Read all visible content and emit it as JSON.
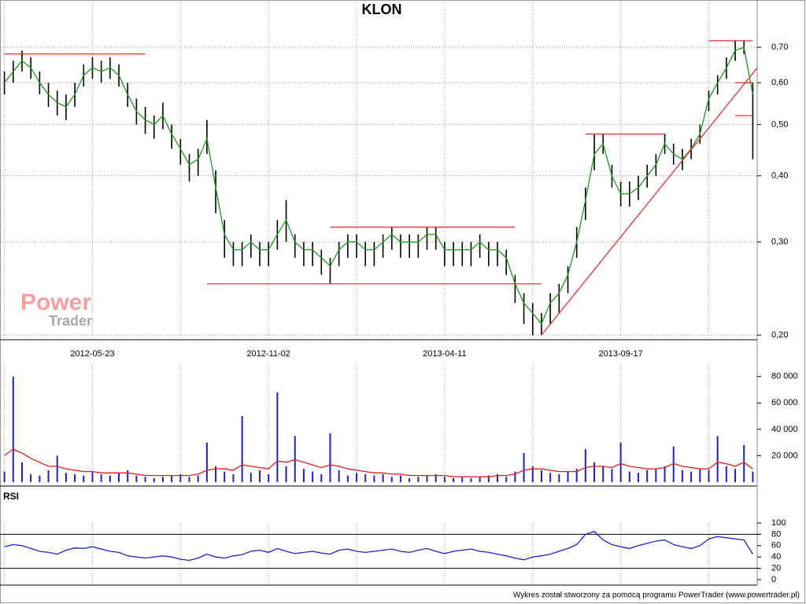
{
  "footer": "Wykres został stworzony za pomocą programu PowerTrader (www.powertrader.pl)",
  "chart_data": [
    {
      "type": "range",
      "title": "KLON",
      "log": true,
      "grid": true,
      "bar_color": "#000000",
      "categories": [
        null,
        null,
        null,
        null,
        null,
        null,
        null,
        null,
        null,
        null,
        "2012-05-23",
        null,
        null,
        null,
        null,
        null,
        null,
        null,
        null,
        null,
        null,
        null,
        null,
        null,
        null,
        null,
        null,
        null,
        null,
        null,
        "2012-11-02",
        null,
        null,
        null,
        null,
        null,
        null,
        null,
        null,
        null,
        null,
        null,
        null,
        null,
        null,
        null,
        null,
        null,
        null,
        null,
        "2013-04-11",
        null,
        null,
        null,
        null,
        null,
        null,
        null,
        null,
        null,
        null,
        null,
        null,
        null,
        null,
        null,
        null,
        null,
        null,
        null,
        "2013-09-17",
        null,
        null,
        null,
        null,
        null,
        null,
        null,
        null,
        null,
        null,
        null,
        null,
        null,
        null,
        null
      ],
      "high": [
        0.63,
        0.66,
        0.69,
        0.67,
        0.63,
        0.6,
        0.58,
        0.57,
        0.6,
        0.65,
        0.67,
        0.66,
        0.67,
        0.65,
        0.6,
        0.56,
        0.54,
        0.52,
        0.55,
        0.5,
        0.47,
        0.44,
        0.45,
        0.51,
        0.41,
        0.33,
        0.3,
        0.3,
        0.31,
        0.3,
        0.3,
        0.33,
        0.36,
        0.31,
        0.3,
        0.3,
        0.29,
        0.28,
        0.3,
        0.31,
        0.31,
        0.3,
        0.3,
        0.31,
        0.32,
        0.31,
        0.31,
        0.31,
        0.32,
        0.32,
        0.3,
        0.3,
        0.3,
        0.3,
        0.31,
        0.3,
        0.3,
        0.29,
        0.26,
        0.24,
        0.23,
        0.22,
        0.24,
        0.25,
        0.27,
        0.32,
        0.38,
        0.48,
        0.48,
        0.42,
        0.39,
        0.39,
        0.4,
        0.42,
        0.44,
        0.48,
        0.46,
        0.45,
        0.47,
        0.5,
        0.58,
        0.62,
        0.67,
        0.72,
        0.72,
        0.6
      ],
      "low": [
        0.57,
        0.6,
        0.63,
        0.61,
        0.57,
        0.54,
        0.52,
        0.51,
        0.54,
        0.59,
        0.61,
        0.6,
        0.61,
        0.59,
        0.54,
        0.5,
        0.48,
        0.47,
        0.49,
        0.45,
        0.42,
        0.39,
        0.4,
        0.44,
        0.34,
        0.28,
        0.27,
        0.27,
        0.28,
        0.27,
        0.27,
        0.29,
        0.3,
        0.28,
        0.27,
        0.27,
        0.26,
        0.25,
        0.27,
        0.28,
        0.28,
        0.27,
        0.27,
        0.28,
        0.29,
        0.28,
        0.28,
        0.28,
        0.29,
        0.29,
        0.27,
        0.27,
        0.27,
        0.27,
        0.28,
        0.27,
        0.27,
        0.26,
        0.23,
        0.21,
        0.2,
        0.2,
        0.21,
        0.22,
        0.24,
        0.28,
        0.33,
        0.41,
        0.44,
        0.38,
        0.35,
        0.35,
        0.36,
        0.38,
        0.4,
        0.44,
        0.42,
        0.41,
        0.43,
        0.46,
        0.53,
        0.57,
        0.61,
        0.66,
        0.68,
        0.43
      ],
      "ma": {
        "color": "#1a9a1a",
        "values": [
          0.6,
          0.63,
          0.66,
          0.64,
          0.6,
          0.57,
          0.55,
          0.54,
          0.57,
          0.62,
          0.64,
          0.63,
          0.64,
          0.62,
          0.57,
          0.53,
          0.51,
          0.5,
          0.52,
          0.48,
          0.45,
          0.42,
          0.43,
          0.47,
          0.38,
          0.31,
          0.29,
          0.29,
          0.3,
          0.29,
          0.29,
          0.31,
          0.33,
          0.3,
          0.29,
          0.29,
          0.28,
          0.27,
          0.29,
          0.3,
          0.3,
          0.29,
          0.29,
          0.3,
          0.31,
          0.3,
          0.3,
          0.3,
          0.31,
          0.31,
          0.29,
          0.29,
          0.29,
          0.29,
          0.3,
          0.29,
          0.29,
          0.28,
          0.25,
          0.23,
          0.22,
          0.21,
          0.23,
          0.24,
          0.26,
          0.3,
          0.36,
          0.44,
          0.46,
          0.4,
          0.37,
          0.37,
          0.38,
          0.4,
          0.42,
          0.46,
          0.44,
          0.43,
          0.45,
          0.48,
          0.56,
          0.6,
          0.64,
          0.69,
          0.7,
          0.57
        ]
      },
      "ylim": [
        0.196,
        0.86
      ],
      "yticks": [
        {
          "value": 0.2,
          "label": "0,20"
        },
        {
          "value": 0.3,
          "label": "0,30"
        },
        {
          "value": 0.4,
          "label": "0,40"
        },
        {
          "value": 0.5,
          "label": "0,50"
        },
        {
          "value": 0.6,
          "label": "0,60"
        },
        {
          "value": 0.7,
          "label": "0,70"
        }
      ],
      "trendline_color": "#e83030",
      "trendlines": [
        {
          "from": [
            0,
            0.68
          ],
          "to": [
            16,
            0.68
          ]
        },
        {
          "from": [
            23,
            0.25
          ],
          "to": [
            61,
            0.25
          ]
        },
        {
          "from": [
            37,
            0.32
          ],
          "to": [
            58,
            0.32
          ]
        },
        {
          "from": [
            66,
            0.48
          ],
          "to": [
            75,
            0.48
          ]
        },
        {
          "from": [
            80,
            0.72
          ],
          "to": [
            85,
            0.72
          ]
        },
        {
          "from": [
            83,
            0.6
          ],
          "to": [
            85,
            0.6
          ]
        },
        {
          "from": [
            83,
            0.52
          ],
          "to": [
            85,
            0.52
          ]
        },
        {
          "from": [
            61,
            0.2
          ],
          "to": [
            85.5,
            0.64
          ]
        }
      ],
      "watermark": [
        "Power",
        "Trader"
      ]
    },
    {
      "type": "bar",
      "color": "#2020c0",
      "values": [
        8000,
        80000,
        15000,
        6000,
        5000,
        9000,
        20000,
        7000,
        6000,
        5000,
        8000,
        6000,
        5000,
        7000,
        9000,
        5000,
        4000,
        3000,
        4000,
        5000,
        6000,
        4000,
        5000,
        30000,
        12000,
        8000,
        6000,
        50000,
        7000,
        9000,
        6000,
        68000,
        12000,
        35000,
        10000,
        8000,
        6000,
        37000,
        9000,
        5000,
        7000,
        6000,
        5000,
        6000,
        4000,
        5000,
        3000,
        4000,
        5000,
        6000,
        4000,
        3000,
        4000,
        3000,
        4000,
        5000,
        6000,
        4000,
        8000,
        22000,
        12000,
        9000,
        7000,
        6000,
        8000,
        10000,
        25000,
        15000,
        12000,
        10000,
        30000,
        8000,
        7000,
        9000,
        10000,
        12000,
        27000,
        9000,
        8000,
        10000,
        9000,
        35000,
        12000,
        10000,
        28000,
        8000
      ],
      "ma": {
        "color": "#e02020",
        "values": [
          20000,
          25000,
          22000,
          18000,
          15000,
          12000,
          12000,
          10000,
          9000,
          8000,
          8000,
          7000,
          7000,
          7000,
          7000,
          6000,
          5000,
          5000,
          5000,
          5000,
          5000,
          5000,
          6000,
          9000,
          10000,
          10000,
          9000,
          13000,
          12000,
          11000,
          10000,
          16000,
          15000,
          17000,
          15000,
          13000,
          11000,
          13000,
          12000,
          10000,
          9000,
          8000,
          7000,
          7000,
          6000,
          6000,
          5000,
          5000,
          5000,
          5000,
          5000,
          4000,
          4000,
          4000,
          4000,
          4000,
          5000,
          5000,
          6000,
          9000,
          10000,
          10000,
          9000,
          8000,
          8000,
          8000,
          11000,
          12000,
          12000,
          11000,
          14000,
          12000,
          11000,
          10000,
          10000,
          11000,
          14000,
          12000,
          11000,
          10000,
          10000,
          15000,
          14000,
          12000,
          15000,
          10000
        ]
      },
      "ylim": [
        0,
        90000
      ],
      "yticks": [
        {
          "value": 20000,
          "label": "20 000"
        },
        {
          "value": 40000,
          "label": "40 000"
        },
        {
          "value": 60000,
          "label": "60 000"
        },
        {
          "value": 80000,
          "label": "80 000"
        }
      ]
    },
    {
      "type": "line",
      "title": "RSI",
      "color": "#2020d0",
      "values": [
        58,
        62,
        60,
        55,
        50,
        48,
        45,
        52,
        56,
        55,
        58,
        54,
        50,
        48,
        42,
        40,
        38,
        40,
        42,
        40,
        36,
        34,
        38,
        45,
        40,
        38,
        42,
        44,
        50,
        52,
        48,
        55,
        50,
        46,
        48,
        50,
        47,
        45,
        52,
        54,
        50,
        48,
        50,
        52,
        54,
        50,
        48,
        52,
        55,
        50,
        46,
        50,
        52,
        54,
        50,
        48,
        45,
        42,
        38,
        35,
        40,
        42,
        45,
        50,
        55,
        62,
        80,
        85,
        70,
        62,
        58,
        55,
        60,
        64,
        68,
        70,
        62,
        58,
        55,
        60,
        72,
        76,
        74,
        72,
        70,
        45
      ],
      "ylim": [
        0,
        100
      ],
      "yticks": [
        0,
        20,
        40,
        60,
        80,
        100
      ],
      "reference_lines": [
        20,
        80
      ]
    }
  ]
}
